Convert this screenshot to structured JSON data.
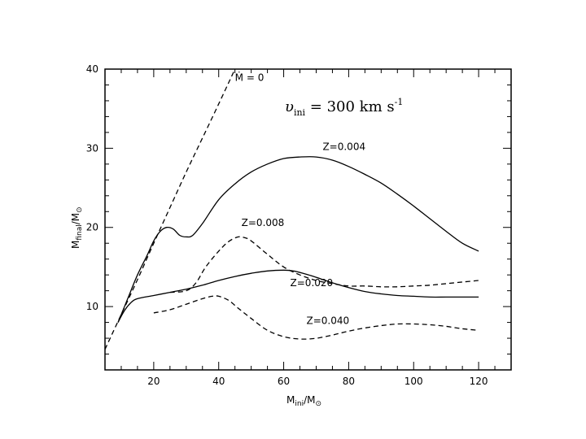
{
  "chart_data": {
    "type": "line",
    "title": "υ_ini = 300 km s⁻¹",
    "title_main": "υ",
    "title_sub": "ini",
    "title_rest": " = 300 km s",
    "title_sup": "-1",
    "xlabel": "M_ini/M_⊙",
    "ylabel": "M_final/M_⊙",
    "xlabel_main": "M",
    "xlabel_sub": "ini",
    "xlabel_rest": "/M",
    "xlabel_sub2": "⊙",
    "ylabel_main": "M",
    "ylabel_sub": "final",
    "ylabel_rest": "/M",
    "ylabel_sub2": "⊙",
    "xlim": [
      5,
      130
    ],
    "ylim": [
      2,
      40
    ],
    "xticks": [
      20,
      40,
      60,
      80,
      100,
      120
    ],
    "yticks": [
      10,
      20,
      30,
      40
    ],
    "grid": false,
    "series": [
      {
        "name": "Ṁ = 0",
        "label": "Ṁ = 0",
        "style": "dashed",
        "x": [
          5,
          10,
          15,
          20,
          25,
          30,
          35,
          40,
          45
        ],
        "y": [
          4.6,
          9.0,
          13.4,
          18.0,
          22.5,
          27.0,
          31.3,
          35.6,
          40.0
        ]
      },
      {
        "name": "Z=0.004",
        "label": "Z=0.004",
        "style": "solid",
        "x": [
          9,
          12,
          15,
          18,
          20,
          22,
          24,
          26,
          28,
          30,
          32,
          35,
          40,
          45,
          50,
          55,
          60,
          65,
          70,
          75,
          80,
          85,
          90,
          95,
          100,
          105,
          110,
          115,
          120
        ],
        "y": [
          8.0,
          11.0,
          14.0,
          16.5,
          18.3,
          19.5,
          20.0,
          19.8,
          19.0,
          18.8,
          19.0,
          20.5,
          23.5,
          25.5,
          27.0,
          28.0,
          28.7,
          28.9,
          28.9,
          28.5,
          27.7,
          26.7,
          25.6,
          24.2,
          22.7,
          21.1,
          19.5,
          18.0,
          17.0
        ]
      },
      {
        "name": "Z=0.008",
        "label": "Z=0.008",
        "style": "dashed",
        "x": [
          25,
          30,
          33,
          36,
          40,
          43,
          46,
          48,
          50,
          55,
          60,
          65,
          70,
          75,
          80,
          85,
          90,
          95,
          100,
          105,
          110,
          115,
          120
        ],
        "y": [
          11.8,
          12.0,
          13.0,
          15.0,
          17.0,
          18.2,
          18.8,
          18.7,
          18.3,
          16.6,
          15.0,
          14.0,
          13.3,
          12.9,
          12.6,
          12.6,
          12.5,
          12.5,
          12.6,
          12.7,
          12.9,
          13.1,
          13.3
        ]
      },
      {
        "name": "Z=0.020",
        "label": "Z=0.020",
        "style": "solid",
        "x": [
          9,
          11,
          13,
          15,
          20,
          25,
          30,
          35,
          40,
          45,
          50,
          55,
          60,
          63,
          66,
          70,
          75,
          80,
          85,
          90,
          95,
          100,
          105,
          110,
          115,
          120
        ],
        "y": [
          8.0,
          9.5,
          10.5,
          11.0,
          11.4,
          11.8,
          12.2,
          12.7,
          13.3,
          13.8,
          14.2,
          14.5,
          14.6,
          14.5,
          14.2,
          13.7,
          13.0,
          12.4,
          11.9,
          11.6,
          11.4,
          11.3,
          11.2,
          11.2,
          11.2,
          11.2
        ]
      },
      {
        "name": "Z=0.040",
        "label": "Z=0.040",
        "style": "dashed",
        "x": [
          20,
          25,
          30,
          35,
          38,
          40,
          43,
          46,
          50,
          55,
          60,
          65,
          70,
          75,
          80,
          85,
          90,
          95,
          100,
          105,
          110,
          115,
          120
        ],
        "y": [
          9.2,
          9.6,
          10.3,
          11.0,
          11.3,
          11.3,
          10.8,
          9.8,
          8.5,
          7.0,
          6.2,
          5.9,
          6.0,
          6.4,
          6.9,
          7.3,
          7.6,
          7.8,
          7.8,
          7.7,
          7.5,
          7.2,
          7.0
        ]
      }
    ],
    "curve_labels": [
      {
        "text": "Ṁ = 0",
        "at": [
          45,
          38.5
        ]
      },
      {
        "text": "Z=0.004",
        "at": [
          72,
          29.8
        ]
      },
      {
        "text": "Z=0.008",
        "at": [
          47,
          20.2
        ]
      },
      {
        "text": "Z=0.020",
        "at": [
          62,
          12.6
        ]
      },
      {
        "text": "Z=0.040",
        "at": [
          67,
          7.8
        ]
      }
    ]
  }
}
